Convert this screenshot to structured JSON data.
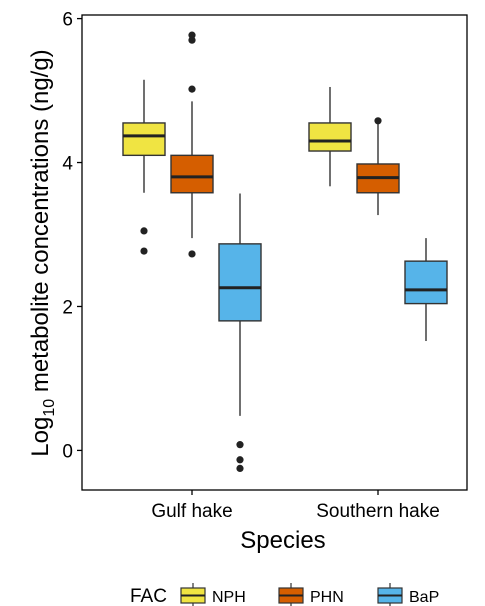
{
  "chart_data": {
    "type": "box",
    "xlabel": "Species",
    "ylabel": {
      "prefix": "Log",
      "subscript": "10",
      "suffix": " metabolite concentrations (ng/g)"
    },
    "categories": [
      "Gulf hake",
      "Southern hake"
    ],
    "ylim": [
      -0.55,
      6.05
    ],
    "yticks": [
      "0",
      "2",
      "4",
      "6"
    ],
    "ytick_values": [
      0,
      2,
      4,
      6
    ],
    "grid": false,
    "legend": {
      "title": "FAC",
      "position": "bottom",
      "entries": [
        "NPH",
        "PHN",
        "BaP"
      ]
    },
    "series": [
      {
        "name": "NPH",
        "color": "#F0E442",
        "boxes": [
          {
            "category": "Gulf hake",
            "q1": 4.1,
            "median": 4.37,
            "q3": 4.55,
            "whisker_low": 3.58,
            "whisker_high": 5.15,
            "outliers": [
              3.05,
              2.77
            ]
          },
          {
            "category": "Southern hake",
            "q1": 4.16,
            "median": 4.3,
            "q3": 4.55,
            "whisker_low": 3.67,
            "whisker_high": 5.05,
            "outliers": []
          }
        ]
      },
      {
        "name": "PHN",
        "color": "#D55E00",
        "boxes": [
          {
            "category": "Gulf hake",
            "q1": 3.58,
            "median": 3.8,
            "q3": 4.1,
            "whisker_low": 2.95,
            "whisker_high": 4.85,
            "outliers": [
              5.77,
              5.7,
              5.02,
              2.73
            ]
          },
          {
            "category": "Southern hake",
            "q1": 3.58,
            "median": 3.79,
            "q3": 3.98,
            "whisker_low": 3.27,
            "whisker_high": 4.58,
            "outliers": [
              4.58
            ]
          }
        ]
      },
      {
        "name": "BaP",
        "color": "#56B4E9",
        "boxes": [
          {
            "category": "Gulf hake",
            "q1": 1.8,
            "median": 2.26,
            "q3": 2.87,
            "whisker_low": 0.48,
            "whisker_high": 3.57,
            "outliers": [
              0.08,
              -0.13,
              -0.25
            ]
          },
          {
            "category": "Southern hake",
            "q1": 2.04,
            "median": 2.23,
            "q3": 2.63,
            "whisker_low": 1.52,
            "whisker_high": 2.95,
            "outliers": []
          }
        ]
      }
    ]
  }
}
